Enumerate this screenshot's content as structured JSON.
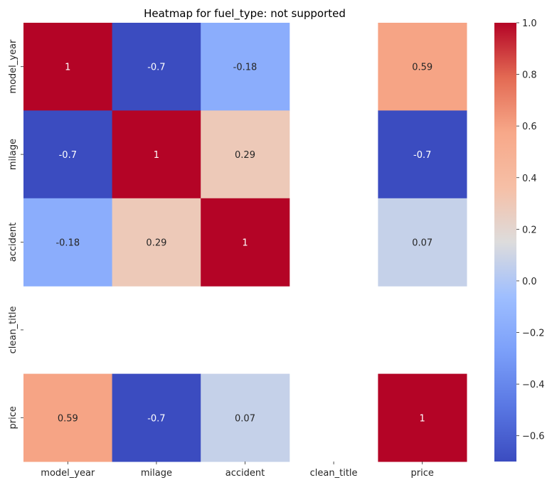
{
  "chart_data": {
    "type": "heatmap",
    "title": "Heatmap for fuel_type: not supported",
    "rows": [
      "model_year",
      "milage",
      "accident",
      "clean_title",
      "price"
    ],
    "cols": [
      "model_year",
      "milage",
      "accident",
      "clean_title",
      "price"
    ],
    "values": [
      [
        1,
        -0.7,
        -0.18,
        null,
        0.59
      ],
      [
        -0.7,
        1,
        0.29,
        null,
        -0.7
      ],
      [
        -0.18,
        0.29,
        1,
        null,
        0.07
      ],
      [
        null,
        null,
        null,
        null,
        null
      ],
      [
        0.59,
        -0.7,
        0.07,
        null,
        1
      ]
    ],
    "value_labels": [
      [
        "1",
        "-0.7",
        "-0.18",
        "",
        "0.59"
      ],
      [
        "-0.7",
        "1",
        "0.29",
        "",
        "-0.7"
      ],
      [
        "-0.18",
        "0.29",
        "1",
        "",
        "0.07"
      ],
      [
        "",
        "",
        "",
        "",
        ""
      ],
      [
        "0.59",
        "-0.7",
        "0.07",
        "",
        "1"
      ]
    ],
    "colormap": "coolwarm",
    "vmin": -0.7,
    "vmax": 1.0,
    "colorbar_ticks": [
      1.0,
      0.8,
      0.6,
      0.4,
      0.2,
      0.0,
      -0.2,
      -0.4,
      -0.6
    ],
    "colorbar_tick_labels": [
      "1.0",
      "0.8",
      "0.6",
      "0.4",
      "0.2",
      "0.0",
      "−0.2",
      "−0.4",
      "−0.6"
    ],
    "annot_colors": {
      "light": "#ffffff",
      "dark": "#262626"
    }
  }
}
